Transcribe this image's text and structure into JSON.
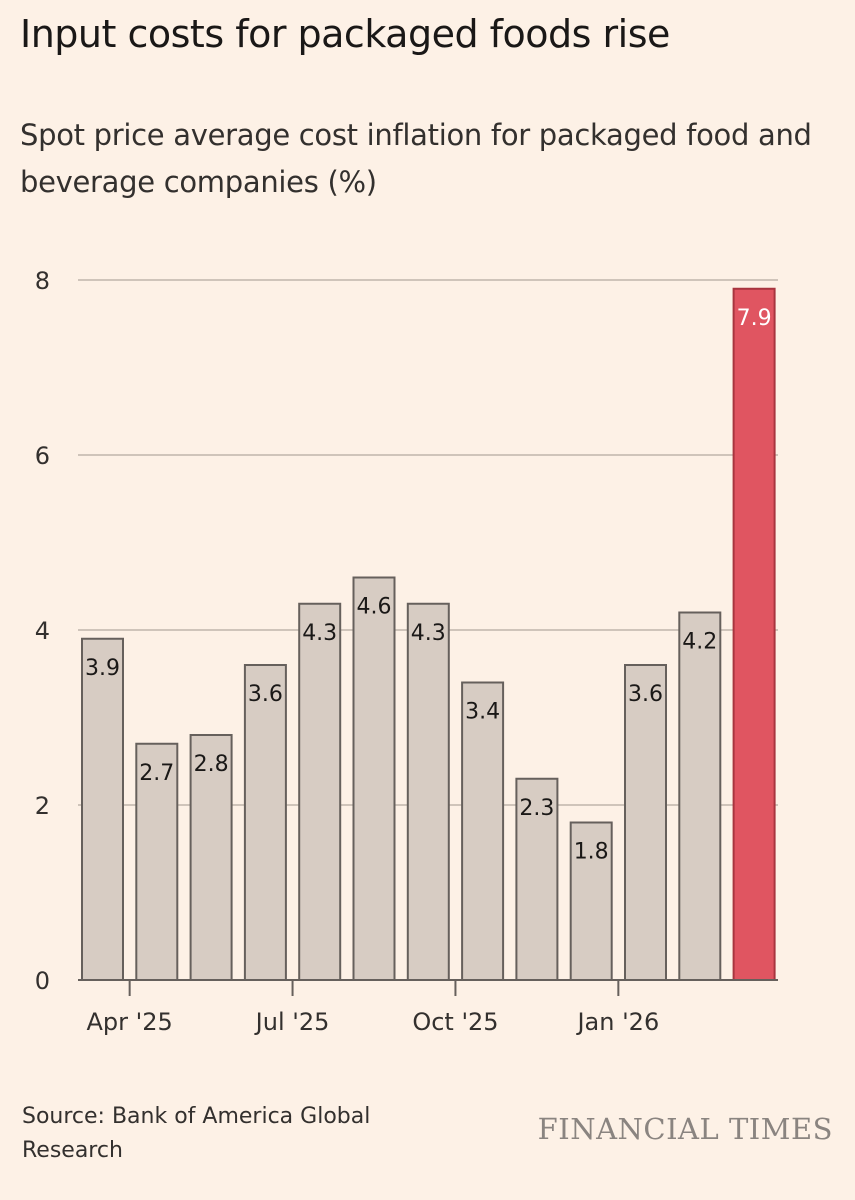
{
  "title": "Input costs for packaged foods rise",
  "subtitle": "Spot price average cost inflation for packaged food and beverage companies (%)",
  "source": "Source: Bank of America Global Research",
  "brand": "FINANCIAL TIMES",
  "chart_data": {
    "type": "bar",
    "title": "Input costs for packaged foods rise",
    "subtitle": "Spot price average cost inflation for packaged food and beverage companies (%)",
    "ylim": [
      0,
      8
    ],
    "yticks": [
      0,
      2,
      4,
      6,
      8
    ],
    "grid": true,
    "xtick_labels": [
      {
        "label": "Apr '25",
        "after_index": 0
      },
      {
        "label": "Jul '25",
        "after_index": 3
      },
      {
        "label": "Oct '25",
        "after_index": 6
      },
      {
        "label": "Jan '26",
        "after_index": 9
      }
    ],
    "values": [
      3.9,
      2.7,
      2.8,
      3.6,
      4.3,
      4.6,
      4.3,
      3.4,
      2.3,
      1.8,
      3.6,
      4.2,
      7.9
    ],
    "labels": [
      "3.9",
      "2.7",
      "2.8",
      "3.6",
      "4.3",
      "4.6",
      "4.3",
      "3.4",
      "2.3",
      "1.8",
      "3.6",
      "4.2",
      "7.9"
    ],
    "highlight_index": 12,
    "colors": {
      "bar": "#d7ccc3",
      "bar_stroke": "#66605c",
      "highlight": "#e05561",
      "grid": "#cfc4ba",
      "axis": "#66605c"
    }
  }
}
